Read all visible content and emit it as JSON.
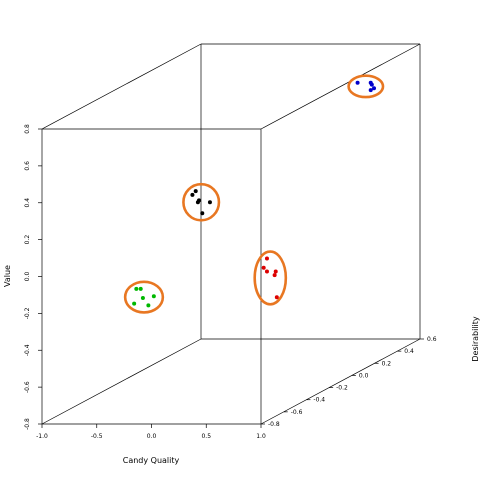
{
  "chart_data": {
    "type": "scatter",
    "projection": "3d",
    "xlabel": "Candy Quality",
    "ylabel": "Value",
    "zlabel": "Desirability",
    "xlim": [
      -1.0,
      1.0
    ],
    "ylim": [
      -0.8,
      0.8
    ],
    "zlim": [
      -0.8,
      0.6
    ],
    "x_ticks": [
      "-1.0",
      "-0.5",
      "0.0",
      "0.5",
      "1.0"
    ],
    "y_ticks": [
      "-0.8",
      "-0.6",
      "-0.4",
      "-0.2",
      "0.0",
      "0.2",
      "0.4",
      "0.6",
      "0.8"
    ],
    "z_ticks": [
      "-0.8",
      "-0.6",
      "-0.4",
      "-0.2",
      "0.0",
      "0.2",
      "0.4",
      "0.6"
    ],
    "grid": false,
    "legend": "none",
    "cluster_ellipse_color": "#e87722",
    "series": [
      {
        "color": "#00b800",
        "points": [
          [
            -0.18,
            -0.08,
            -0.76
          ],
          [
            -0.14,
            -0.08,
            -0.76
          ],
          [
            -0.12,
            -0.13,
            -0.76
          ],
          [
            -0.02,
            -0.12,
            -0.76
          ],
          [
            -0.2,
            -0.16,
            -0.76
          ],
          [
            -0.07,
            -0.17,
            -0.76
          ]
        ]
      },
      {
        "color": "#000000",
        "points": [
          [
            0.3,
            0.43,
            -0.7
          ],
          [
            0.27,
            0.41,
            -0.7
          ],
          [
            0.33,
            0.38,
            -0.7
          ],
          [
            0.32,
            0.37,
            -0.7
          ],
          [
            0.43,
            0.37,
            -0.7
          ],
          [
            0.36,
            0.31,
            -0.7
          ]
        ]
      },
      {
        "color": "#0000cc",
        "points": [
          [
            0.43,
            0.59,
            0.6
          ],
          [
            0.55,
            0.59,
            0.6
          ],
          [
            0.56,
            0.58,
            0.6
          ],
          [
            0.58,
            0.56,
            0.6
          ],
          [
            0.55,
            0.55,
            0.6
          ]
        ]
      },
      {
        "color": "#dd0000",
        "points": [
          [
            0.37,
            -0.12,
            -0.14
          ],
          [
            0.34,
            -0.17,
            -0.14
          ],
          [
            0.37,
            -0.19,
            -0.14
          ],
          [
            0.45,
            -0.19,
            -0.14
          ],
          [
            0.44,
            -0.21,
            -0.14
          ],
          [
            0.46,
            -0.33,
            -0.14
          ]
        ]
      }
    ]
  }
}
